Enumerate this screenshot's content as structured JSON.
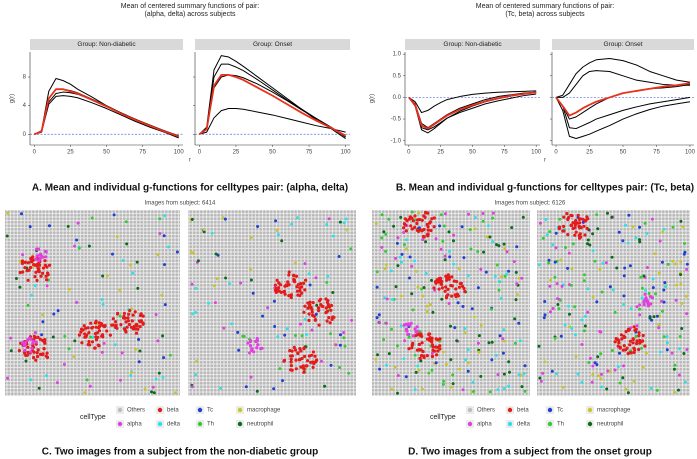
{
  "chart_data": [
    {
      "type": "line",
      "title": [
        "Mean of centered summary functions of pair:",
        "(alpha, delta) across subjects"
      ],
      "xlabel": "r",
      "ylabel": "g(r)",
      "x": [
        0,
        5,
        10,
        15,
        20,
        25,
        30,
        40,
        50,
        60,
        70,
        80,
        90,
        100
      ],
      "xlim": [
        -3,
        103
      ],
      "xticks": [
        0,
        25,
        50,
        75,
        100
      ],
      "ylim": [
        -1.5,
        11.5
      ],
      "yticks": [
        0,
        4,
        8
      ],
      "hline": 0,
      "hline_color": "#5b6fd6",
      "facets": [
        {
          "label": "Group: Non-diabetic",
          "series": [
            {
              "color": "#000000",
              "values": [
                0,
                0.5,
                6,
                7.8,
                7.5,
                7,
                6.3,
                5.2,
                4,
                3,
                2,
                1.2,
                0.5,
                -0.2
              ]
            },
            {
              "color": "#000000",
              "values": [
                0,
                0.4,
                5,
                6.3,
                6.3,
                6.1,
                5.8,
                4.9,
                4,
                3,
                2.1,
                1.2,
                0.4,
                -0.4
              ]
            },
            {
              "color": "#000000",
              "values": [
                0,
                0.3,
                4.5,
                5.7,
                5.9,
                5.8,
                5.6,
                4.8,
                3.9,
                3,
                2.1,
                1.3,
                0.5,
                -0.3
              ]
            },
            {
              "color": "#000000",
              "values": [
                0,
                0.3,
                4.2,
                5.3,
                5.4,
                5.3,
                5.1,
                4.4,
                3.6,
                2.7,
                1.8,
                1,
                0.3,
                -0.5
              ]
            },
            {
              "color": "#e8301c",
              "values": [
                0,
                0.4,
                5,
                6.3,
                6.3,
                6,
                5.7,
                4.8,
                3.9,
                2.9,
                2,
                1.2,
                0.4,
                -0.3
              ]
            }
          ]
        },
        {
          "label": "Group: Onset",
          "series": [
            {
              "color": "#000000",
              "values": [
                0,
                1,
                9,
                11,
                10.8,
                10.2,
                9.5,
                8,
                6.5,
                5,
                3.5,
                2,
                0.8,
                -0.6
              ]
            },
            {
              "color": "#000000",
              "values": [
                0,
                0.8,
                8,
                9.8,
                9.8,
                9.4,
                8.9,
                7.6,
                6.2,
                4.8,
                3.5,
                2.2,
                1,
                -0.3
              ]
            },
            {
              "color": "#000000",
              "values": [
                0,
                0.7,
                6.5,
                8,
                8.3,
                8.2,
                7.9,
                7,
                5.9,
                4.7,
                3.4,
                2.2,
                1,
                -0.4
              ]
            },
            {
              "color": "#000000",
              "values": [
                0,
                0.3,
                2.3,
                3.3,
                3.6,
                3.6,
                3.5,
                3.1,
                2.7,
                2.2,
                1.7,
                1.2,
                0.8,
                0.3
              ]
            },
            {
              "color": "#e8301c",
              "values": [
                0,
                0.7,
                6.8,
                8.3,
                8.3,
                8,
                7.6,
                6.5,
                5.4,
                4.2,
                3,
                1.9,
                0.9,
                -0.2
              ]
            }
          ]
        }
      ],
      "caption": "A. Mean and individual g-functions for celltypes pair: (alpha, delta)"
    },
    {
      "type": "line",
      "title": [
        "Mean of centered summary functions of pair:",
        "(Tc, beta) across subjects"
      ],
      "xlabel": "r",
      "ylabel": "g(r)",
      "x": [
        0,
        5,
        10,
        15,
        20,
        25,
        30,
        40,
        50,
        60,
        70,
        80,
        90,
        100
      ],
      "xlim": [
        -3,
        103
      ],
      "xticks": [
        0,
        25,
        50,
        75,
        100
      ],
      "ylim": [
        -1.1,
        1.05
      ],
      "yticks": [
        {
          "value": -1,
          "label": "-1.0"
        },
        {
          "value": -0.5,
          "label": "-0.5"
        },
        {
          "value": 0,
          "label": "0.0"
        },
        {
          "value": 0.5,
          "label": "0.5"
        },
        {
          "value": 1,
          "label": "1.0"
        }
      ],
      "hline": 0,
      "hline_color": "#5b6fd6",
      "facets": [
        {
          "label": "Group: Non-diabetic",
          "series": [
            {
              "color": "#000000",
              "values": [
                0,
                -0.1,
                -0.35,
                -0.3,
                -0.2,
                -0.12,
                -0.05,
                0.02,
                0.07,
                0.1,
                0.12,
                0.13,
                0.14,
                0.15
              ]
            },
            {
              "color": "#000000",
              "values": [
                0,
                -0.15,
                -0.6,
                -0.7,
                -0.6,
                -0.5,
                -0.4,
                -0.25,
                -0.15,
                -0.05,
                0.02,
                0.06,
                0.1,
                0.12
              ]
            },
            {
              "color": "#000000",
              "values": [
                0,
                -0.2,
                -0.75,
                -0.82,
                -0.72,
                -0.6,
                -0.48,
                -0.32,
                -0.2,
                -0.1,
                -0.03,
                0.03,
                0.08,
                0.12
              ]
            },
            {
              "color": "#000000",
              "values": [
                0,
                -0.2,
                -0.7,
                -0.75,
                -0.68,
                -0.58,
                -0.48,
                -0.35,
                -0.25,
                -0.15,
                -0.08,
                -0.02,
                0.04,
                0.08
              ]
            },
            {
              "color": "#e8301c",
              "values": [
                0,
                -0.18,
                -0.65,
                -0.72,
                -0.62,
                -0.52,
                -0.42,
                -0.28,
                -0.18,
                -0.09,
                -0.02,
                0.04,
                0.08,
                0.12
              ]
            }
          ]
        },
        {
          "label": "Group: Onset",
          "series": [
            {
              "color": "#000000",
              "values": [
                0,
                0.05,
                0.3,
                0.55,
                0.7,
                0.8,
                0.87,
                0.9,
                0.85,
                0.75,
                0.6,
                0.5,
                0.4,
                0.35
              ]
            },
            {
              "color": "#000000",
              "values": [
                0,
                0,
                0.1,
                0.3,
                0.5,
                0.6,
                0.62,
                0.6,
                0.5,
                0.4,
                0.35,
                0.3,
                0.28,
                0.28
              ]
            },
            {
              "color": "#000000",
              "values": [
                0,
                -0.2,
                -0.5,
                -0.45,
                -0.35,
                -0.25,
                -0.15,
                0,
                0.1,
                0.15,
                0.2,
                0.22,
                0.25,
                0.3
              ]
            },
            {
              "color": "#000000",
              "values": [
                0,
                -0.2,
                -0.7,
                -0.72,
                -0.65,
                -0.58,
                -0.5,
                -0.4,
                -0.3,
                -0.22,
                -0.15,
                -0.1,
                -0.05,
                0
              ]
            },
            {
              "color": "#000000",
              "values": [
                0,
                -0.3,
                -0.9,
                -0.95,
                -0.9,
                -0.85,
                -0.78,
                -0.65,
                -0.5,
                -0.38,
                -0.28,
                -0.2,
                -0.15,
                -0.1
              ]
            },
            {
              "color": "#e8301c",
              "values": [
                0,
                -0.2,
                -0.42,
                -0.35,
                -0.25,
                -0.17,
                -0.1,
                0,
                0.1,
                0.15,
                0.2,
                0.25,
                0.28,
                0.33
              ]
            }
          ]
        }
      ],
      "caption": "B. Mean and individual g-functions for celltypes pair: (Tc, beta)"
    }
  ],
  "image_panels": [
    {
      "title": "Images from subject: 6414",
      "legend_title": "cellType",
      "legend": [
        {
          "label": "Others",
          "color": "#bdbdbd"
        },
        {
          "label": "beta",
          "color": "#e41a1c"
        },
        {
          "label": "Tc",
          "color": "#1f3fd6"
        },
        {
          "label": "macrophage",
          "color": "#c9c62a"
        },
        {
          "label": "alpha",
          "color": "#e040e0"
        },
        {
          "label": "delta",
          "color": "#2ee0e8"
        },
        {
          "label": "Th",
          "color": "#33cc33"
        },
        {
          "label": "neutrophil",
          "color": "#0a6b1a"
        }
      ],
      "caption": "C. Two images from a subject from the non-diabetic group"
    },
    {
      "title": "Images from subject: 6126",
      "legend_title": "cellType",
      "legend": [
        {
          "label": "Others",
          "color": "#bdbdbd"
        },
        {
          "label": "beta",
          "color": "#e41a1c"
        },
        {
          "label": "Tc",
          "color": "#1f3fd6"
        },
        {
          "label": "macrophage",
          "color": "#c9c62a"
        },
        {
          "label": "alpha",
          "color": "#e040e0"
        },
        {
          "label": "delta",
          "color": "#2ee0e8"
        },
        {
          "label": "Th",
          "color": "#33cc33"
        },
        {
          "label": "neutrophil",
          "color": "#0a6b1a"
        }
      ],
      "caption": "D. Two images from a subject from the onset group"
    }
  ]
}
